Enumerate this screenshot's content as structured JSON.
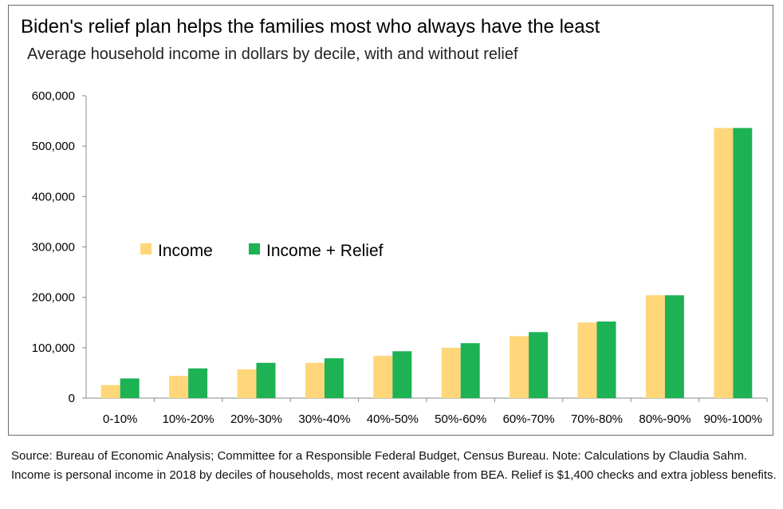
{
  "chart_data": {
    "type": "bar",
    "title": "Biden's relief plan helps the families most who always have the least",
    "subtitle": "Average household income in dollars by decile, with and without relief",
    "categories": [
      "0-10%",
      "10%-20%",
      "20%-30%",
      "30%-40%",
      "40%-50%",
      "50%-60%",
      "60%-70%",
      "70%-80%",
      "80%-90%",
      "90%-100%"
    ],
    "series": [
      {
        "name": "Income",
        "color": "#FFD77A",
        "values": [
          26000,
          44000,
          57000,
          70000,
          84000,
          100000,
          123000,
          150000,
          204000,
          536000
        ]
      },
      {
        "name": "Income + Relief",
        "color": "#1DB254",
        "values": [
          39000,
          59000,
          70000,
          79000,
          93000,
          109000,
          131000,
          152000,
          204000,
          536000
        ]
      }
    ],
    "yticks": [
      "0",
      "100,000",
      "200,000",
      "300,000",
      "400,000",
      "500,000",
      "600,000"
    ],
    "ylim": [
      0,
      600000
    ],
    "grid": false,
    "legend_position": "center-left"
  },
  "source_note": "Source: Bureau of Economic Analysis; Committee for a Responsible Federal Budget, Census Bureau. Note: Calculations by Claudia Sahm. Income is personal income in 2018 by deciles of households, most recent available from BEA. Relief is $1,400 checks and extra jobless benefits."
}
